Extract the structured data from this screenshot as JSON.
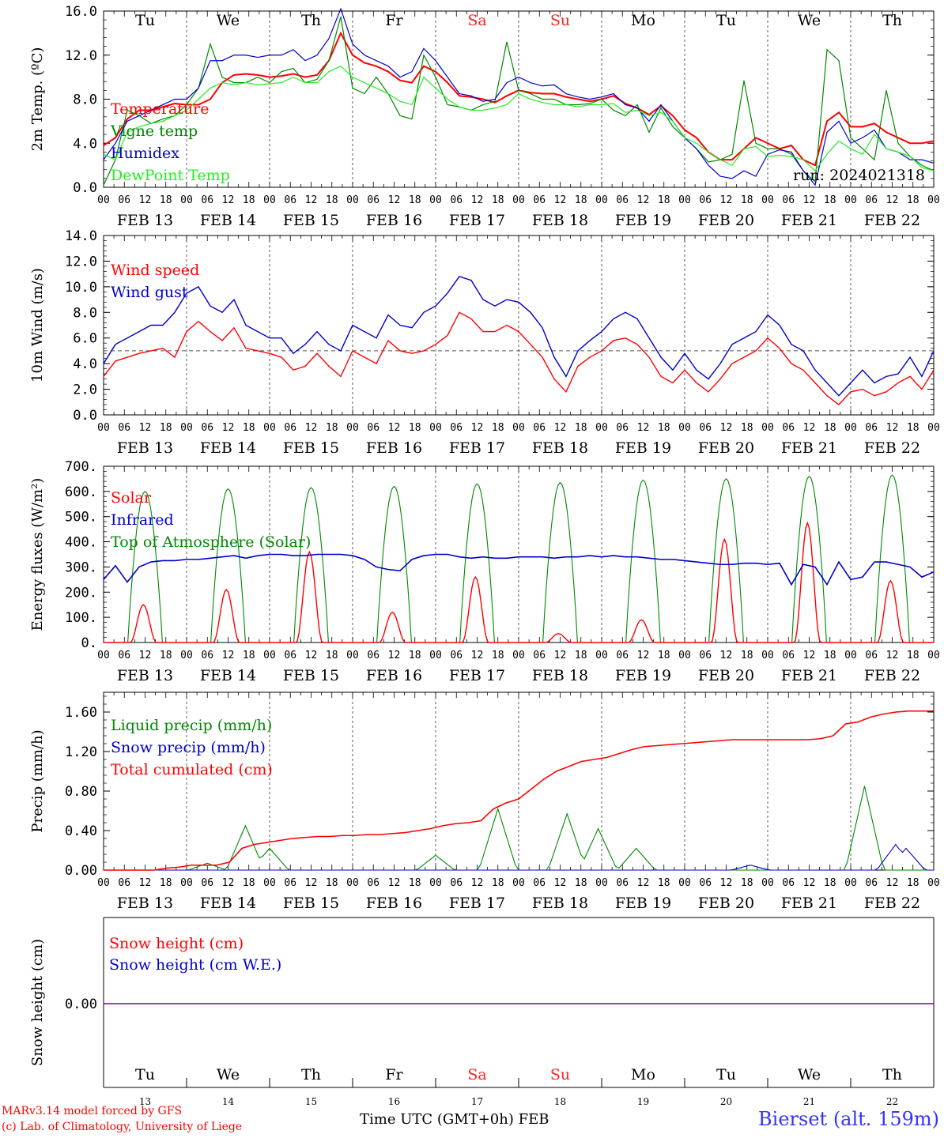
{
  "run_label": "run: 2024021318",
  "days": {
    "names": [
      "Tu",
      "We",
      "Th",
      "Fr",
      "Sa",
      "Su",
      "Mo",
      "Tu",
      "We",
      "Th"
    ],
    "weekend_color": "#ff2020",
    "weekend_index": [
      4,
      5
    ],
    "dates": [
      "FEB 13",
      "FEB 14",
      "FEB 15",
      "FEB 16",
      "FEB 17",
      "FEB 18",
      "FEB 19",
      "FEB 20",
      "FEB 21",
      "FEB 22"
    ],
    "day_numbers": [
      "13",
      "14",
      "15",
      "16",
      "17",
      "18",
      "19",
      "20",
      "21",
      "22"
    ],
    "hour_ticks": [
      "00",
      "06",
      "12",
      "18"
    ],
    "last_hour_tick": "00"
  },
  "footer": {
    "credit_line1": "MARv3.14 model forced by GFS",
    "credit_line2": "(c) Lab. of Climatology, University of Liege",
    "x_title": "Time UTC (GMT+0h) FEB",
    "station": "Bierset (alt. 159m)"
  },
  "chart_data": [
    {
      "type": "line",
      "ylabel": "2m Temp. (ºC)",
      "ylim": [
        0,
        16
      ],
      "yticks": [
        "0.0",
        "4.0",
        "8.0",
        "12.0",
        "16.0"
      ],
      "x": "3-hourly from FEB 13 00 to FEB 23 00",
      "series": [
        {
          "name": "Temperature",
          "color": "#ff0000",
          "values": [
            3.8,
            4.5,
            6.2,
            7.0,
            7.0,
            7.3,
            7.6,
            7.5,
            7.5,
            8.0,
            9.5,
            10.2,
            10.3,
            10.2,
            10.0,
            10.1,
            10.3,
            10.0,
            10.2,
            11.5,
            14.0,
            12.0,
            11.3,
            11.0,
            10.5,
            9.7,
            9.5,
            11.0,
            10.5,
            9.5,
            8.3,
            8.2,
            8.0,
            7.7,
            8.3,
            8.8,
            8.6,
            8.5,
            8.5,
            8.2,
            8.0,
            7.8,
            8.0,
            8.3,
            7.6,
            7.2,
            6.6,
            7.4,
            6.5,
            5.2,
            4.5,
            3.2,
            2.5,
            2.5,
            3.5,
            4.5,
            4.0,
            3.5,
            3.8,
            2.5,
            2.0,
            6.0,
            6.8,
            5.5,
            5.5,
            5.8,
            5.0,
            4.5,
            4.0,
            4.0,
            4.2
          ]
        },
        {
          "name": "Vigne temp",
          "color": "#008800",
          "values": [
            0.2,
            2.5,
            7.0,
            6.5,
            5.8,
            6.2,
            6.5,
            7.5,
            9.0,
            13.0,
            10.0,
            9.5,
            9.5,
            10.0,
            9.5,
            10.5,
            10.8,
            9.5,
            9.8,
            11.5,
            15.5,
            9.0,
            8.5,
            10.0,
            8.5,
            6.5,
            6.2,
            12.0,
            10.0,
            7.5,
            7.3,
            7.0,
            7.5,
            7.8,
            13.2,
            8.8,
            8.5,
            8.0,
            8.0,
            7.5,
            7.5,
            7.6,
            8.0,
            7.0,
            6.5,
            7.5,
            5.0,
            7.2,
            5.5,
            4.5,
            3.5,
            2.3,
            2.5,
            3.0,
            9.7,
            4.0,
            3.5,
            3.5,
            3.0,
            1.5,
            0.5,
            12.5,
            11.5,
            4.5,
            3.5,
            2.5,
            8.8,
            4.0,
            2.8,
            2.0,
            1.5
          ]
        },
        {
          "name": "Humidex",
          "color": "#0000cc",
          "values": [
            2.5,
            4.0,
            6.0,
            6.5,
            7.0,
            7.5,
            8.0,
            8.0,
            9.0,
            11.5,
            11.5,
            12.0,
            12.0,
            11.8,
            12.0,
            12.0,
            12.5,
            11.5,
            12.0,
            13.5,
            16.2,
            13.0,
            12.0,
            11.5,
            11.0,
            10.0,
            10.5,
            12.6,
            11.5,
            10.0,
            8.5,
            8.3,
            7.8,
            8.0,
            9.5,
            10.0,
            9.5,
            9.2,
            9.3,
            8.5,
            8.2,
            8.0,
            8.2,
            8.5,
            7.5,
            7.2,
            6.0,
            7.5,
            6.0,
            4.5,
            3.5,
            2.0,
            1.0,
            0.8,
            1.5,
            1.0,
            3.0,
            3.4,
            3.2,
            1.5,
            0.2,
            5.0,
            6.0,
            4.0,
            4.5,
            5.2,
            3.5,
            3.2,
            2.5,
            2.5,
            2.2
          ]
        },
        {
          "name": "DewPoint Temp",
          "color": "#22ee22",
          "values": [
            3.0,
            2.5,
            5.0,
            5.5,
            5.8,
            6.0,
            6.5,
            7.0,
            8.0,
            9.0,
            9.5,
            9.3,
            9.5,
            9.3,
            9.4,
            9.5,
            10.0,
            9.5,
            9.5,
            10.5,
            11.0,
            10.0,
            9.5,
            9.0,
            8.5,
            7.8,
            7.5,
            10.0,
            9.0,
            8.0,
            7.3,
            7.0,
            7.0,
            7.2,
            7.5,
            8.5,
            8.0,
            7.7,
            7.5,
            7.5,
            7.3,
            7.5,
            7.5,
            7.6,
            6.8,
            7.0,
            6.5,
            6.8,
            6.0,
            4.5,
            4.0,
            3.2,
            2.5,
            2.0,
            3.5,
            3.7,
            2.8,
            2.9,
            2.8,
            2.5,
            1.5,
            3.0,
            4.2,
            3.5,
            3.0,
            4.8,
            3.5,
            3.2,
            2.8,
            1.8,
            1.5
          ]
        }
      ],
      "annotation": "run: 2024021318"
    },
    {
      "type": "line",
      "ylabel": "10m Wind (m/s)",
      "ylim": [
        0,
        14
      ],
      "yticks": [
        "0.0",
        "2.0",
        "4.0",
        "6.0",
        "8.0",
        "10.0",
        "12.0",
        "14.0"
      ],
      "reference_line": 5.0,
      "series": [
        {
          "name": "Wind speed",
          "color": "#ff0000",
          "values": [
            3.0,
            4.2,
            4.5,
            4.8,
            5.0,
            5.2,
            4.5,
            6.5,
            7.3,
            6.5,
            5.8,
            6.8,
            5.2,
            5.0,
            4.8,
            4.5,
            3.5,
            3.8,
            4.8,
            3.8,
            3.0,
            5.0,
            4.5,
            4.0,
            5.8,
            5.0,
            4.8,
            5.0,
            5.5,
            6.2,
            8.0,
            7.5,
            6.5,
            6.5,
            7.0,
            6.5,
            5.5,
            4.5,
            2.8,
            1.8,
            3.8,
            4.5,
            5.0,
            5.8,
            6.0,
            5.5,
            4.5,
            3.0,
            2.5,
            3.5,
            2.5,
            1.8,
            2.8,
            4.0,
            4.5,
            5.0,
            6.0,
            5.2,
            4.0,
            3.5,
            2.5,
            1.5,
            0.8,
            1.8,
            2.0,
            1.5,
            1.8,
            2.5,
            3.0,
            2.0,
            3.5
          ]
        },
        {
          "name": "Wind gust",
          "color": "#0000cc",
          "values": [
            4.0,
            5.5,
            6.0,
            6.5,
            7.0,
            7.0,
            8.0,
            9.5,
            10.0,
            8.5,
            8.0,
            9.0,
            7.0,
            6.5,
            6.0,
            6.0,
            4.8,
            5.5,
            6.5,
            5.5,
            5.0,
            7.0,
            6.5,
            6.0,
            7.8,
            7.0,
            6.8,
            8.0,
            8.5,
            9.5,
            10.8,
            10.5,
            9.0,
            8.5,
            9.0,
            8.8,
            8.0,
            6.8,
            4.5,
            3.0,
            5.0,
            5.8,
            6.5,
            7.5,
            8.0,
            7.5,
            6.0,
            4.5,
            3.5,
            4.8,
            3.5,
            2.8,
            4.0,
            5.5,
            6.0,
            6.5,
            7.8,
            7.0,
            5.5,
            5.0,
            3.5,
            2.5,
            1.5,
            2.5,
            3.5,
            2.5,
            3.0,
            3.2,
            4.5,
            3.0,
            5.0
          ]
        }
      ]
    },
    {
      "type": "line",
      "ylabel": "Energy fluxes (W/m²)",
      "ylim": [
        0,
        700
      ],
      "yticks": [
        "0.",
        "100.",
        "200.",
        "300.",
        "400.",
        "500.",
        "600.",
        "700."
      ],
      "series": [
        {
          "name": "Solar",
          "color": "#ff0000",
          "daily_peaks": [
            150,
            210,
            360,
            120,
            260,
            35,
            90,
            410,
            475,
            245
          ]
        },
        {
          "name": "Infrared",
          "color": "#0000cc",
          "values": [
            250,
            305,
            240,
            300,
            320,
            325,
            325,
            330,
            330,
            335,
            340,
            345,
            335,
            345,
            350,
            350,
            345,
            345,
            350,
            350,
            350,
            345,
            330,
            300,
            290,
            285,
            330,
            345,
            350,
            350,
            340,
            335,
            340,
            335,
            335,
            340,
            340,
            340,
            335,
            340,
            340,
            345,
            340,
            345,
            340,
            340,
            335,
            330,
            330,
            325,
            320,
            315,
            310,
            310,
            315,
            315,
            310,
            315,
            230,
            310,
            300,
            230,
            320,
            250,
            260,
            320,
            320,
            310,
            300,
            260,
            280
          ]
        },
        {
          "name": "Top of Atmosphere (Solar)",
          "color": "#008800",
          "daily_peaks": [
            600,
            610,
            615,
            620,
            630,
            635,
            645,
            650,
            660,
            665
          ]
        }
      ]
    },
    {
      "type": "line",
      "ylabel": "Precip (mm/h)",
      "ylim": [
        0,
        1.8
      ],
      "yticks": [
        "0.00",
        "0.40",
        "0.80",
        "1.20",
        "1.60"
      ],
      "series": [
        {
          "name": "Liquid precip (mm/h)",
          "color": "#008800",
          "peaks": [
            [
              1.25,
              0.07
            ],
            [
              1.7,
              0.45
            ],
            [
              2.0,
              0.22
            ],
            [
              4.0,
              0.15
            ],
            [
              4.75,
              0.62
            ],
            [
              5.6,
              0.57
            ],
            [
              5.95,
              0.42
            ],
            [
              6.4,
              0.22
            ],
            [
              9.15,
              0.85
            ]
          ]
        },
        {
          "name": "Snow precip (mm/h)",
          "color": "#0000cc",
          "peaks": [
            [
              7.8,
              0.05
            ],
            [
              9.55,
              0.26
            ],
            [
              9.65,
              0.22
            ]
          ]
        },
        {
          "name": "Total cumulated (cm)",
          "color": "#ff0000",
          "values": [
            0,
            0,
            0,
            0,
            0,
            0.02,
            0.03,
            0.05,
            0.05,
            0.05,
            0.08,
            0.22,
            0.26,
            0.28,
            0.3,
            0.32,
            0.33,
            0.34,
            0.34,
            0.35,
            0.35,
            0.36,
            0.36,
            0.37,
            0.38,
            0.4,
            0.42,
            0.45,
            0.47,
            0.48,
            0.5,
            0.62,
            0.68,
            0.72,
            0.82,
            0.92,
            1.0,
            1.05,
            1.1,
            1.12,
            1.14,
            1.18,
            1.22,
            1.25,
            1.26,
            1.27,
            1.28,
            1.29,
            1.3,
            1.31,
            1.32,
            1.32,
            1.32,
            1.32,
            1.32,
            1.32,
            1.32,
            1.33,
            1.36,
            1.48,
            1.5,
            1.55,
            1.58,
            1.6,
            1.61,
            1.61,
            1.61
          ]
        }
      ]
    },
    {
      "type": "line",
      "ylabel": "Snow height (cm)",
      "yticks": [
        "0.00"
      ],
      "series": [
        {
          "name": "Snow height (cm)",
          "color": "#ff0000",
          "values": [
            0,
            0
          ]
        },
        {
          "name": "Snow height (cm W.E.)",
          "color": "#0000cc",
          "values": [
            0,
            0
          ]
        }
      ]
    }
  ]
}
